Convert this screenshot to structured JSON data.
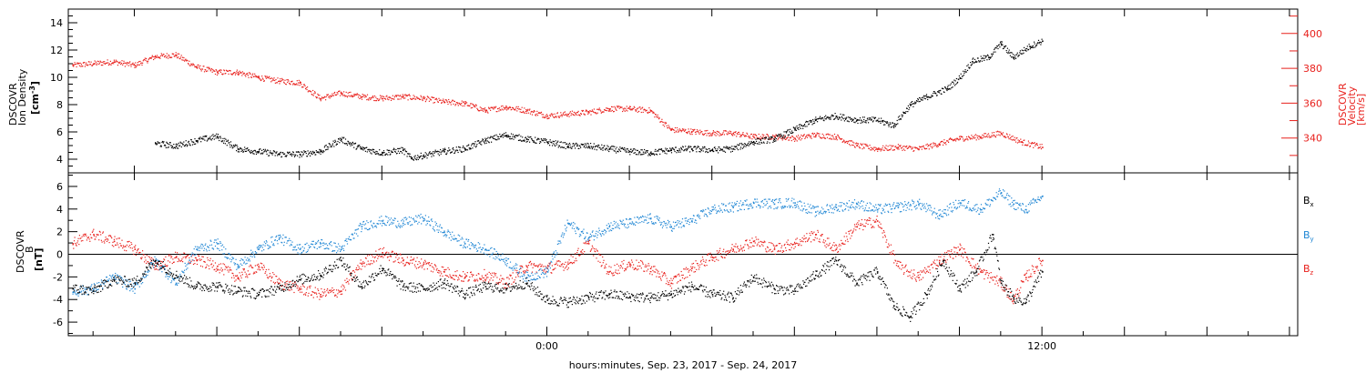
{
  "chart_data": [
    {
      "type": "scatter",
      "panel": "plasma",
      "ylabel_lines": [
        "DSCOVR",
        "Ion Density"
      ],
      "yunit_left": {
        "base": "[cm",
        "sup": "-3",
        "close": "]"
      },
      "ylabel_right_lines": [
        "DSCOVR",
        "Velocity"
      ],
      "yunit_right": "[km/s]",
      "ylim": [
        3,
        15
      ],
      "yticks": [
        4,
        6,
        8,
        10,
        12,
        14
      ],
      "ylim_right": [
        320,
        414
      ],
      "yticks_right": [
        340,
        360,
        380,
        400
      ],
      "colors": {
        "density": "#000000",
        "velocity": "#e8201c"
      },
      "series": [
        {
          "key": "density",
          "points": [
            [
              -9.5,
              5.2
            ],
            [
              -9,
              5.0
            ],
            [
              -8.5,
              5.4
            ],
            [
              -8,
              5.7
            ],
            [
              -7.5,
              4.8
            ],
            [
              -7,
              4.6
            ],
            [
              -6.5,
              4.4
            ],
            [
              -6,
              4.4
            ],
            [
              -5.5,
              4.6
            ],
            [
              -5,
              5.5
            ],
            [
              -4.5,
              4.8
            ],
            [
              -4,
              4.5
            ],
            [
              -3.5,
              4.7
            ],
            [
              -3.3,
              4.1
            ],
            [
              -3,
              4.3
            ],
            [
              -2.5,
              4.6
            ],
            [
              -2,
              4.8
            ],
            [
              -1.5,
              5.4
            ],
            [
              -1,
              5.8
            ],
            [
              -0.5,
              5.5
            ],
            [
              0,
              5.3
            ],
            [
              0.5,
              5.0
            ],
            [
              1,
              5.0
            ],
            [
              1.5,
              4.8
            ],
            [
              2,
              4.6
            ],
            [
              2.5,
              4.5
            ],
            [
              3,
              4.7
            ],
            [
              3.5,
              4.8
            ],
            [
              4,
              4.7
            ],
            [
              4.5,
              4.8
            ],
            [
              5,
              5.3
            ],
            [
              5.5,
              5.5
            ],
            [
              6,
              6.2
            ],
            [
              6.5,
              6.9
            ],
            [
              7,
              7.2
            ],
            [
              7.5,
              6.9
            ],
            [
              8,
              6.9
            ],
            [
              8.4,
              6.5
            ],
            [
              8.8,
              8.0
            ],
            [
              9.2,
              8.6
            ],
            [
              9.7,
              9.2
            ],
            [
              10,
              10.0
            ],
            [
              10.3,
              11.2
            ],
            [
              10.7,
              11.5
            ],
            [
              11,
              12.5
            ],
            [
              11.3,
              11.5
            ],
            [
              11.7,
              12.3
            ],
            [
              12,
              12.7
            ]
          ]
        },
        {
          "key": "velocity",
          "points": [
            [
              -11.5,
              382
            ],
            [
              -11,
              383
            ],
            [
              -10.5,
              384
            ],
            [
              -10,
              382
            ],
            [
              -9.5,
              387
            ],
            [
              -9,
              388
            ],
            [
              -8.5,
              381
            ],
            [
              -8,
              378
            ],
            [
              -7.5,
              378
            ],
            [
              -7,
              375
            ],
            [
              -6.5,
              373
            ],
            [
              -6,
              372
            ],
            [
              -5.5,
              363
            ],
            [
              -5,
              366
            ],
            [
              -4.5,
              364
            ],
            [
              -4,
              363
            ],
            [
              -3.5,
              364
            ],
            [
              -3,
              363
            ],
            [
              -2.5,
              361
            ],
            [
              -2,
              360
            ],
            [
              -1.5,
              356
            ],
            [
              -1,
              358
            ],
            [
              -0.5,
              356
            ],
            [
              0,
              353
            ],
            [
              0.5,
              354
            ],
            [
              1,
              355
            ],
            [
              1.5,
              357
            ],
            [
              2,
              357
            ],
            [
              2.5,
              356
            ],
            [
              3,
              345
            ],
            [
              3.5,
              344
            ],
            [
              4,
              343
            ],
            [
              4.5,
              343
            ],
            [
              5,
              341
            ],
            [
              5.5,
              341
            ],
            [
              6,
              340
            ],
            [
              6.5,
              342
            ],
            [
              7,
              341
            ],
            [
              7.5,
              336
            ],
            [
              8,
              334
            ],
            [
              8.5,
              335
            ],
            [
              9,
              334
            ],
            [
              9.5,
              337
            ],
            [
              10,
              340
            ],
            [
              10.5,
              341
            ],
            [
              11,
              343
            ],
            [
              11.5,
              338
            ],
            [
              12,
              335
            ]
          ]
        }
      ]
    },
    {
      "type": "scatter",
      "panel": "magnetic-field",
      "ylabel_lines": [
        "DSCOVR",
        "B"
      ],
      "yunit": "[nT]",
      "ylim": [
        -7.2,
        7.2
      ],
      "yticks": [
        -6,
        -4,
        -2,
        0,
        2,
        4,
        6
      ],
      "zero_line": true,
      "x_tick_labels": [
        {
          "x": 0,
          "label": "0:00"
        },
        {
          "x": 12,
          "label": "12:00"
        }
      ],
      "x_major_ticks": [
        -10,
        -8,
        -6,
        -4,
        -2,
        0,
        2,
        4,
        6,
        8,
        10,
        12,
        14,
        16,
        18
      ],
      "xlim": [
        -11.6,
        18.2
      ],
      "xlabel": "hours:minutes, Sep. 23, 2017 - Sep. 24, 2017",
      "legend": [
        {
          "key": "bx",
          "base": "B",
          "sub": "x",
          "color": "#000000"
        },
        {
          "key": "by",
          "base": "B",
          "sub": "y",
          "color": "#1f86d4"
        },
        {
          "key": "bz",
          "base": "B",
          "sub": "z",
          "color": "#e8201c"
        }
      ],
      "series": [
        {
          "key": "bx",
          "points": [
            [
              -11.5,
              -3.0
            ],
            [
              -11,
              -3.2
            ],
            [
              -10.5,
              -2.2
            ],
            [
              -10,
              -2.5
            ],
            [
              -9.5,
              -0.5
            ],
            [
              -9,
              -1.8
            ],
            [
              -8.5,
              -2.8
            ],
            [
              -8,
              -2.8
            ],
            [
              -7.5,
              -3.2
            ],
            [
              -7,
              -3.5
            ],
            [
              -6.5,
              -3.0
            ],
            [
              -6,
              -2.2
            ],
            [
              -5.5,
              -1.8
            ],
            [
              -5,
              -0.5
            ],
            [
              -4.5,
              -2.8
            ],
            [
              -4,
              -1.2
            ],
            [
              -3.5,
              -2.8
            ],
            [
              -3,
              -3.0
            ],
            [
              -2.5,
              -2.5
            ],
            [
              -2,
              -3.5
            ],
            [
              -1.5,
              -2.8
            ],
            [
              -1,
              -3.0
            ],
            [
              -0.5,
              -2.5
            ],
            [
              0,
              -4.0
            ],
            [
              0.5,
              -4.2
            ],
            [
              1,
              -3.8
            ],
            [
              1.5,
              -3.5
            ],
            [
              2,
              -3.7
            ],
            [
              2.5,
              -3.8
            ],
            [
              3,
              -3.5
            ],
            [
              3.5,
              -2.8
            ],
            [
              4,
              -3.5
            ],
            [
              4.5,
              -3.8
            ],
            [
              5,
              -2.0
            ],
            [
              5.5,
              -3.0
            ],
            [
              6,
              -3.2
            ],
            [
              6.5,
              -1.8
            ],
            [
              7,
              -0.5
            ],
            [
              7.5,
              -2.5
            ],
            [
              8,
              -1.5
            ],
            [
              8.4,
              -4.5
            ],
            [
              8.8,
              -5.5
            ],
            [
              9.2,
              -3.5
            ],
            [
              9.6,
              -0.5
            ],
            [
              10,
              -3.0
            ],
            [
              10.4,
              -1.5
            ],
            [
              10.8,
              1.8
            ],
            [
              11,
              -2.5
            ],
            [
              11.3,
              -3.8
            ],
            [
              11.6,
              -4.2
            ],
            [
              12,
              -1.5
            ]
          ]
        },
        {
          "key": "by",
          "points": [
            [
              -11.5,
              -3.3
            ],
            [
              -11,
              -3.0
            ],
            [
              -10.5,
              -2.0
            ],
            [
              -10,
              -3.0
            ],
            [
              -9.5,
              -0.5
            ],
            [
              -9,
              -2.5
            ],
            [
              -8.5,
              0.5
            ],
            [
              -8,
              1.0
            ],
            [
              -7.5,
              -1.0
            ],
            [
              -7,
              0.5
            ],
            [
              -6.5,
              1.5
            ],
            [
              -6,
              0.5
            ],
            [
              -5.5,
              1.0
            ],
            [
              -5,
              0.5
            ],
            [
              -4.5,
              2.5
            ],
            [
              -4,
              3.0
            ],
            [
              -3.5,
              2.8
            ],
            [
              -3,
              3.2
            ],
            [
              -2.5,
              2.0
            ],
            [
              -2,
              1.0
            ],
            [
              -1.5,
              0.5
            ],
            [
              -1,
              -0.5
            ],
            [
              -0.5,
              -2.0
            ],
            [
              0,
              -1.5
            ],
            [
              0.5,
              2.8
            ],
            [
              1,
              1.5
            ],
            [
              1.5,
              2.5
            ],
            [
              2,
              2.8
            ],
            [
              2.5,
              3.2
            ],
            [
              3,
              2.5
            ],
            [
              3.5,
              3.0
            ],
            [
              4,
              4.0
            ],
            [
              4.5,
              4.2
            ],
            [
              5,
              4.6
            ],
            [
              5.5,
              4.5
            ],
            [
              6,
              4.6
            ],
            [
              6.5,
              3.8
            ],
            [
              7,
              4.2
            ],
            [
              7.5,
              4.5
            ],
            [
              8,
              4.0
            ],
            [
              8.5,
              4.2
            ],
            [
              9,
              4.5
            ],
            [
              9.5,
              3.5
            ],
            [
              10,
              4.6
            ],
            [
              10.5,
              4.0
            ],
            [
              11,
              5.5
            ],
            [
              11.3,
              4.5
            ],
            [
              11.6,
              4.0
            ],
            [
              12,
              5.2
            ]
          ]
        },
        {
          "key": "bz",
          "points": [
            [
              -11.5,
              1.0
            ],
            [
              -11,
              1.8
            ],
            [
              -10.5,
              1.2
            ],
            [
              -10,
              0.5
            ],
            [
              -9.5,
              -1.0
            ],
            [
              -9,
              -0.2
            ],
            [
              -8.5,
              -0.5
            ],
            [
              -8,
              -1.0
            ],
            [
              -7.5,
              -2.0
            ],
            [
              -7,
              -1.0
            ],
            [
              -6.5,
              -2.5
            ],
            [
              -6,
              -3.0
            ],
            [
              -5.5,
              -3.5
            ],
            [
              -5,
              -3.2
            ],
            [
              -4.5,
              -0.8
            ],
            [
              -4,
              0.2
            ],
            [
              -3.5,
              -0.5
            ],
            [
              -3,
              -0.8
            ],
            [
              -2.5,
              -1.5
            ],
            [
              -2,
              -2.0
            ],
            [
              -1.5,
              -1.8
            ],
            [
              -1,
              -2.5
            ],
            [
              -0.5,
              -1.0
            ],
            [
              0,
              -1.2
            ],
            [
              0.5,
              -0.8
            ],
            [
              1,
              1.0
            ],
            [
              1.5,
              -1.5
            ],
            [
              2,
              -0.8
            ],
            [
              2.5,
              -1.2
            ],
            [
              3,
              -2.5
            ],
            [
              3.5,
              -1.2
            ],
            [
              4,
              -0.2
            ],
            [
              4.5,
              0.5
            ],
            [
              5,
              1.2
            ],
            [
              5.5,
              0.5
            ],
            [
              6,
              1.0
            ],
            [
              6.5,
              1.8
            ],
            [
              7,
              0.5
            ],
            [
              7.5,
              2.5
            ],
            [
              8,
              3.0
            ],
            [
              8.5,
              -1.0
            ],
            [
              9,
              -2.0
            ],
            [
              9.5,
              -0.5
            ],
            [
              10,
              0.5
            ],
            [
              10.5,
              -1.5
            ],
            [
              11,
              -2.5
            ],
            [
              11.3,
              -4.0
            ],
            [
              11.6,
              -2.0
            ],
            [
              12,
              -0.5
            ]
          ]
        }
      ]
    }
  ]
}
